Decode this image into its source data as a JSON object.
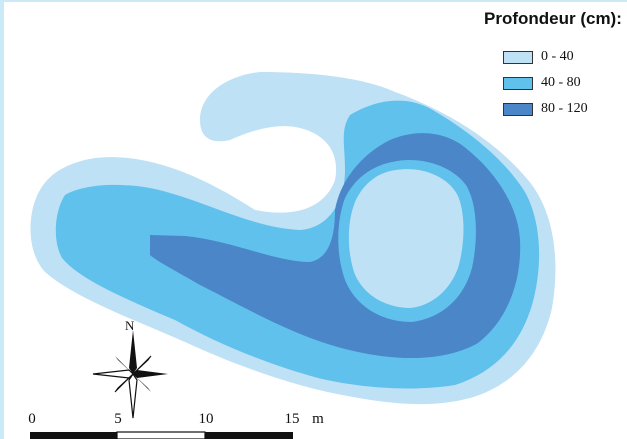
{
  "legend": {
    "title": "Profondeur (cm):",
    "items": [
      {
        "label": "0 - 40",
        "color": "#bfe1f5"
      },
      {
        "label": "40 - 80",
        "color": "#5fc1ec"
      },
      {
        "label": "80 - 120",
        "color": "#4a86c8"
      }
    ]
  },
  "compass": {
    "north_label": "N"
  },
  "scale_bar": {
    "labels": [
      "0",
      "5",
      "10",
      "15"
    ],
    "unit": "m"
  }
}
